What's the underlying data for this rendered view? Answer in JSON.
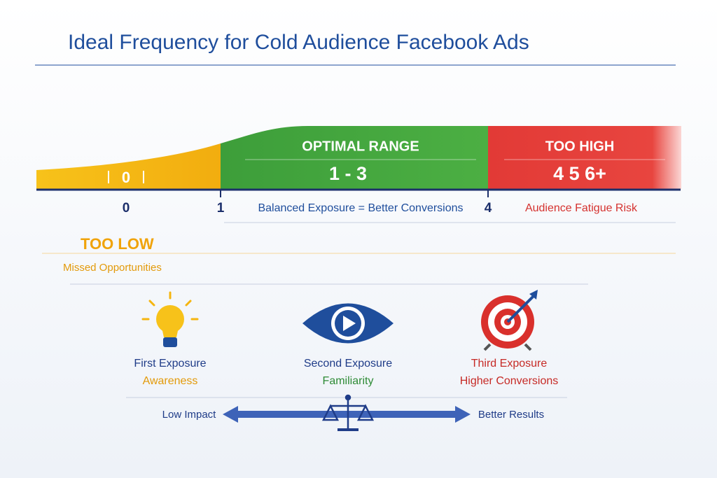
{
  "header": {
    "title": "Ideal Frequency for Cold Audience Facebook Ads"
  },
  "zones": {
    "low": {
      "value_text": "0",
      "label": "TOO LOW",
      "note": "Missed Opportunities"
    },
    "optimal": {
      "label": "OPTIMAL RANGE",
      "value_text": "1 - 3"
    },
    "high": {
      "label": "TOO HIGH",
      "value_text": "4 5 6+"
    }
  },
  "axis": {
    "labels": [
      "0",
      "1",
      "4"
    ],
    "optimal_caption": "Balanced Exposure = Better Conversions",
    "high_caption": "Audience Fatigue Risk"
  },
  "steps": [
    {
      "title": "First Exposure",
      "subtitle": "Awareness"
    },
    {
      "title": "Second Exposure",
      "subtitle": "Familiarity"
    },
    {
      "title": "Third Exposure",
      "subtitle": "Higher Conversions"
    }
  ],
  "scale": {
    "left": "Low Impact",
    "right": "Better Results"
  }
}
